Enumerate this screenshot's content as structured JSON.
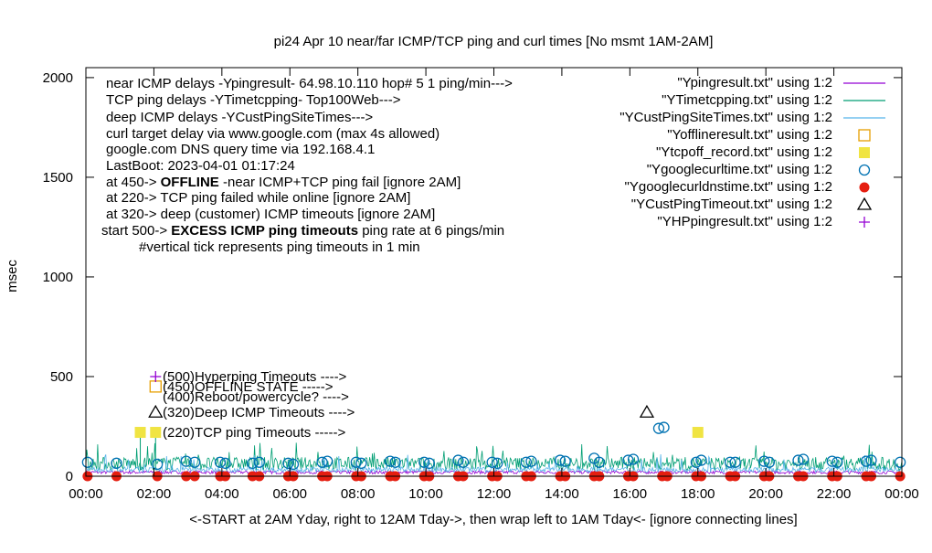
{
  "chart_data": {
    "type": "line",
    "title": "pi24 Apr 10  near/far ICMP/TCP ping and curl times [No msmt 1AM-2AM]",
    "ylabel": "msec",
    "xlabel": "<-START at 2AM Yday, right to 12AM Tday->, then wrap left to 1AM Tday<- [ignore connecting lines]",
    "ylim": [
      0,
      2050
    ],
    "xlim": [
      0,
      24
    ],
    "yticks": [
      0,
      500,
      1000,
      1500,
      2000
    ],
    "xticks": [
      "00:00",
      "02:00",
      "04:00",
      "06:00",
      "08:00",
      "10:00",
      "12:00",
      "14:00",
      "16:00",
      "18:00",
      "20:00",
      "22:00",
      "00:00"
    ],
    "legend_position": "top-right",
    "grid": false,
    "notes": [
      "near ICMP delays -Ypingresult- 64.98.10.110 hop# 5 1 ping/min--->",
      "TCP ping delays -YTimetcpping- Top100Web--->",
      "deep ICMP delays -YCustPingSiteTimes--->",
      "curl target delay via www.google.com (max 4s allowed)",
      "google.com DNS query time via 192.168.4.1",
      "LastBoot: 2023-04-01 01:17:24",
      "at 450-> ",
      "OFFLINE",
      " -near ICMP+TCP ping fail [ignore 2AM]",
      "at 220-> TCP ping failed while online [ignore 2AM]",
      "at 320-> deep (customer) ICMP timeouts [ignore 2AM]",
      "start 500-> ",
      "EXCESS ICMP ping timeouts",
      " ping rate at 6 pings/min",
      "#vertical tick represents ping timeouts in 1 min"
    ],
    "marker_labels": [
      {
        "y": 500,
        "text": "(500)Hyperping Timeouts ---->"
      },
      {
        "y": 450,
        "text": "(450)OFFLINE STATE ----->"
      },
      {
        "y": 400,
        "text": "(400)Reboot/powercycle? ---->"
      },
      {
        "y": 320,
        "text": "(320)Deep ICMP Timeouts ---->"
      },
      {
        "y": 220,
        "text": "(220)TCP ping Timeouts ----->"
      }
    ],
    "series": [
      {
        "name": "\"Ypingresult.txt\" using 1:2",
        "color": "#9400d3",
        "style": "line",
        "baseline": 12
      },
      {
        "name": "\"YTimetcpping.txt\" using 1:2",
        "color": "#009e73",
        "style": "line",
        "baseline": 30
      },
      {
        "name": "\"YCustPingSiteTimes.txt\" using 1:2",
        "color": "#56b4e9",
        "style": "line",
        "baseline": 20
      },
      {
        "name": "\"Yofflineresult.txt\" using 1:2",
        "color": "#e69f00",
        "style": "open-square",
        "points": [
          [
            2.05,
            450
          ]
        ]
      },
      {
        "name": "\"Ytcpoff_record.txt\" using 1:2",
        "color": "#f0e442",
        "style": "filled-square",
        "points": [
          [
            1.6,
            220
          ],
          [
            2.05,
            220
          ],
          [
            18.0,
            220
          ]
        ]
      },
      {
        "name": "\"Ygooglecurltime.txt\" using 1:2",
        "color": "#0072b2",
        "style": "open-circle",
        "points": [
          [
            0.05,
            70
          ],
          [
            0.9,
            65
          ],
          [
            2.1,
            60
          ],
          [
            2.95,
            75
          ],
          [
            3.2,
            70
          ],
          [
            3.95,
            70
          ],
          [
            4.1,
            65
          ],
          [
            4.9,
            65
          ],
          [
            5.1,
            70
          ],
          [
            5.95,
            65
          ],
          [
            6.1,
            60
          ],
          [
            6.95,
            70
          ],
          [
            7.1,
            75
          ],
          [
            7.95,
            70
          ],
          [
            8.1,
            65
          ],
          [
            8.95,
            75
          ],
          [
            9.1,
            70
          ],
          [
            9.95,
            70
          ],
          [
            10.1,
            65
          ],
          [
            10.95,
            80
          ],
          [
            11.1,
            70
          ],
          [
            11.95,
            70
          ],
          [
            12.1,
            65
          ],
          [
            12.95,
            70
          ],
          [
            13.1,
            75
          ],
          [
            13.95,
            80
          ],
          [
            14.1,
            75
          ],
          [
            14.95,
            90
          ],
          [
            15.1,
            70
          ],
          [
            15.95,
            80
          ],
          [
            16.1,
            85
          ],
          [
            16.85,
            240
          ],
          [
            17.0,
            245
          ],
          [
            17.95,
            70
          ],
          [
            18.1,
            80
          ],
          [
            18.95,
            70
          ],
          [
            19.1,
            70
          ],
          [
            19.95,
            75
          ],
          [
            20.1,
            70
          ],
          [
            20.95,
            80
          ],
          [
            21.1,
            85
          ],
          [
            21.95,
            75
          ],
          [
            22.1,
            70
          ],
          [
            22.95,
            75
          ],
          [
            23.1,
            80
          ],
          [
            23.95,
            70
          ]
        ]
      },
      {
        "name": "\"Ygooglecurldnstime.txt\" using 1:2",
        "color": "#e51e10",
        "style": "filled-circle",
        "points": [
          [
            0.05,
            0
          ],
          [
            0.9,
            0
          ],
          [
            2.1,
            0
          ],
          [
            2.95,
            0
          ],
          [
            3.2,
            0
          ],
          [
            3.95,
            0
          ],
          [
            4.1,
            0
          ],
          [
            4.9,
            0
          ],
          [
            5.1,
            0
          ],
          [
            5.95,
            0
          ],
          [
            6.1,
            0
          ],
          [
            6.95,
            0
          ],
          [
            7.1,
            0
          ],
          [
            7.95,
            0
          ],
          [
            8.1,
            0
          ],
          [
            8.95,
            0
          ],
          [
            9.1,
            0
          ],
          [
            9.95,
            0
          ],
          [
            10.1,
            0
          ],
          [
            10.95,
            0
          ],
          [
            11.1,
            0
          ],
          [
            11.95,
            0
          ],
          [
            12.1,
            0
          ],
          [
            12.95,
            0
          ],
          [
            13.1,
            0
          ],
          [
            13.95,
            0
          ],
          [
            14.1,
            0
          ],
          [
            14.95,
            0
          ],
          [
            15.1,
            0
          ],
          [
            15.95,
            0
          ],
          [
            16.1,
            0
          ],
          [
            16.95,
            0
          ],
          [
            17.1,
            0
          ],
          [
            17.95,
            0
          ],
          [
            18.1,
            0
          ],
          [
            18.95,
            0
          ],
          [
            19.1,
            0
          ],
          [
            19.95,
            0
          ],
          [
            20.1,
            0
          ],
          [
            20.95,
            0
          ],
          [
            21.1,
            0
          ],
          [
            21.95,
            0
          ],
          [
            22.1,
            0
          ],
          [
            22.95,
            0
          ],
          [
            23.1,
            0
          ],
          [
            23.95,
            0
          ]
        ]
      },
      {
        "name": "\"YCustPingTimeout.txt\" using 1:2",
        "color": "#000000",
        "style": "open-triangle",
        "points": [
          [
            2.05,
            320
          ],
          [
            16.5,
            320
          ]
        ]
      },
      {
        "name": "\"YHPpingresult.txt\" using 1:2",
        "color": "#9400d3",
        "style": "plus",
        "points": [
          [
            2.05,
            500
          ]
        ]
      }
    ]
  }
}
